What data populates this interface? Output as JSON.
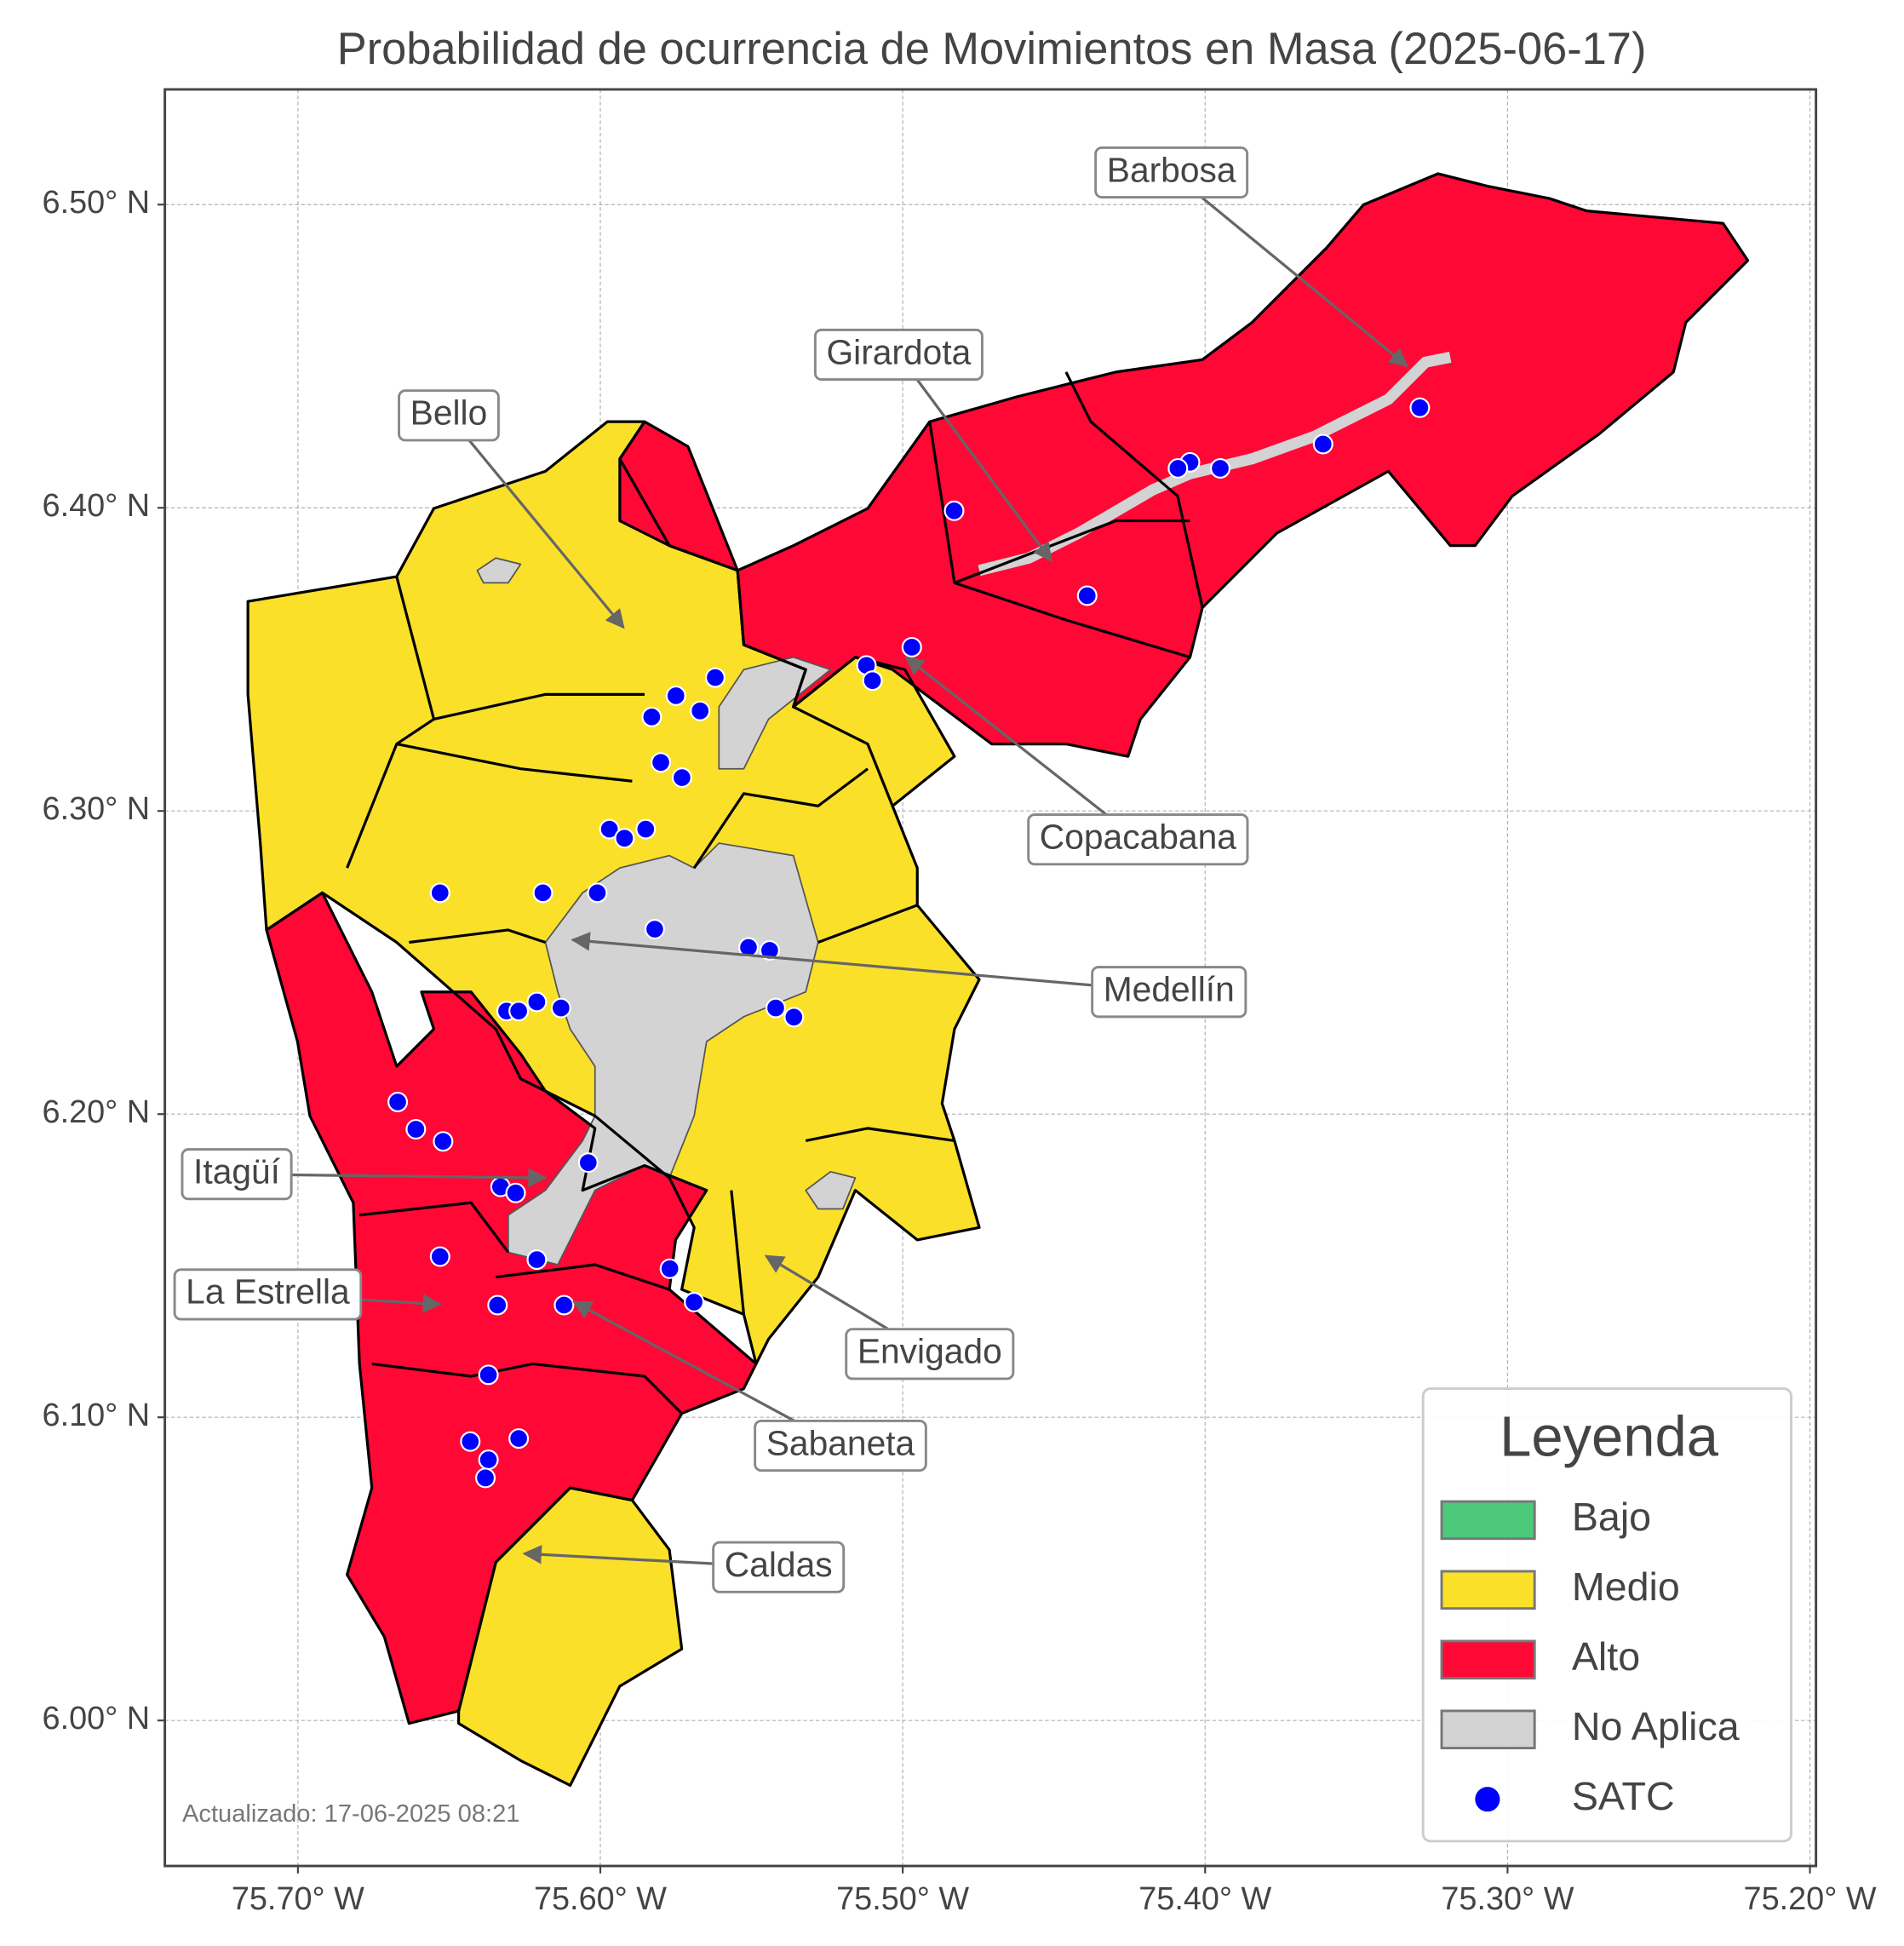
{
  "title": "Probabilidad de ocurrencia de Movimientos en Masa (2025-06-17)",
  "map": {
    "xlim": [
      -75.744,
      -75.198
    ],
    "ylim": [
      5.952,
      6.538
    ],
    "xticks": [
      {
        "value": -75.7,
        "label": "75.70° W"
      },
      {
        "value": -75.6,
        "label": "75.60° W"
      },
      {
        "value": -75.5,
        "label": "75.50° W"
      },
      {
        "value": -75.4,
        "label": "75.40° W"
      },
      {
        "value": -75.3,
        "label": "75.30° W"
      },
      {
        "value": -75.2,
        "label": "75.20° W"
      }
    ],
    "yticks": [
      {
        "value": 6.0,
        "label": "6.00° N"
      },
      {
        "value": 6.1,
        "label": "6.10° N"
      },
      {
        "value": 6.2,
        "label": "6.20° N"
      },
      {
        "value": 6.3,
        "label": "6.30° N"
      },
      {
        "value": 6.4,
        "label": "6.40° N"
      },
      {
        "value": 6.5,
        "label": "6.50° N"
      }
    ],
    "grid": true
  },
  "legend": {
    "title": "Leyenda",
    "items": [
      {
        "label": "Bajo",
        "color": "#4cc97a"
      },
      {
        "label": "Medio",
        "color": "#fbe02a"
      },
      {
        "label": "Alto",
        "color": "#ff0836"
      },
      {
        "label": "No Aplica",
        "color": "#d3d3d3"
      },
      {
        "label": "SATC",
        "color": "#0000ff"
      }
    ]
  },
  "annotations": [
    "Barbosa",
    "Girardota",
    "Bello",
    "Copacabana",
    "Medellín",
    "Itagüí",
    "La Estrella",
    "Envigado",
    "Sabaneta",
    "Caldas"
  ],
  "stations": [
    {
      "lon": -75.329,
      "lat": 6.433
    },
    {
      "lon": -75.361,
      "lat": 6.421
    },
    {
      "lon": -75.395,
      "lat": 6.413
    },
    {
      "lon": -75.405,
      "lat": 6.415
    },
    {
      "lon": -75.409,
      "lat": 6.413
    },
    {
      "lon": -75.483,
      "lat": 6.399
    },
    {
      "lon": -75.439,
      "lat": 6.371
    },
    {
      "lon": -75.497,
      "lat": 6.354
    },
    {
      "lon": -75.512,
      "lat": 6.348
    },
    {
      "lon": -75.51,
      "lat": 6.343
    },
    {
      "lon": -75.562,
      "lat": 6.344
    },
    {
      "lon": -75.575,
      "lat": 6.338
    },
    {
      "lon": -75.567,
      "lat": 6.333
    },
    {
      "lon": -75.583,
      "lat": 6.331
    },
    {
      "lon": -75.58,
      "lat": 6.316
    },
    {
      "lon": -75.573,
      "lat": 6.311
    },
    {
      "lon": -75.597,
      "lat": 6.294
    },
    {
      "lon": -75.592,
      "lat": 6.291
    },
    {
      "lon": -75.585,
      "lat": 6.294
    },
    {
      "lon": -75.653,
      "lat": 6.273
    },
    {
      "lon": -75.619,
      "lat": 6.273
    },
    {
      "lon": -75.601,
      "lat": 6.273
    },
    {
      "lon": -75.582,
      "lat": 6.261
    },
    {
      "lon": -75.551,
      "lat": 6.255
    },
    {
      "lon": -75.544,
      "lat": 6.254
    },
    {
      "lon": -75.542,
      "lat": 6.235
    },
    {
      "lon": -75.536,
      "lat": 6.232
    },
    {
      "lon": -75.631,
      "lat": 6.234
    },
    {
      "lon": -75.627,
      "lat": 6.234
    },
    {
      "lon": -75.621,
      "lat": 6.237
    },
    {
      "lon": -75.613,
      "lat": 6.235
    },
    {
      "lon": -75.667,
      "lat": 6.204
    },
    {
      "lon": -75.661,
      "lat": 6.195
    },
    {
      "lon": -75.652,
      "lat": 6.191
    },
    {
      "lon": -75.604,
      "lat": 6.184
    },
    {
      "lon": -75.633,
      "lat": 6.176
    },
    {
      "lon": -75.628,
      "lat": 6.174
    },
    {
      "lon": -75.653,
      "lat": 6.153
    },
    {
      "lon": -75.621,
      "lat": 6.152
    },
    {
      "lon": -75.577,
      "lat": 6.149
    },
    {
      "lon": -75.569,
      "lat": 6.138
    },
    {
      "lon": -75.634,
      "lat": 6.137
    },
    {
      "lon": -75.612,
      "lat": 6.137
    },
    {
      "lon": -75.637,
      "lat": 6.114
    },
    {
      "lon": -75.643,
      "lat": 6.092
    },
    {
      "lon": -75.627,
      "lat": 6.093
    },
    {
      "lon": -75.637,
      "lat": 6.086
    },
    {
      "lon": -75.638,
      "lat": 6.08
    }
  ],
  "footnote": "Actualizado: 17-06-2025 08:21"
}
